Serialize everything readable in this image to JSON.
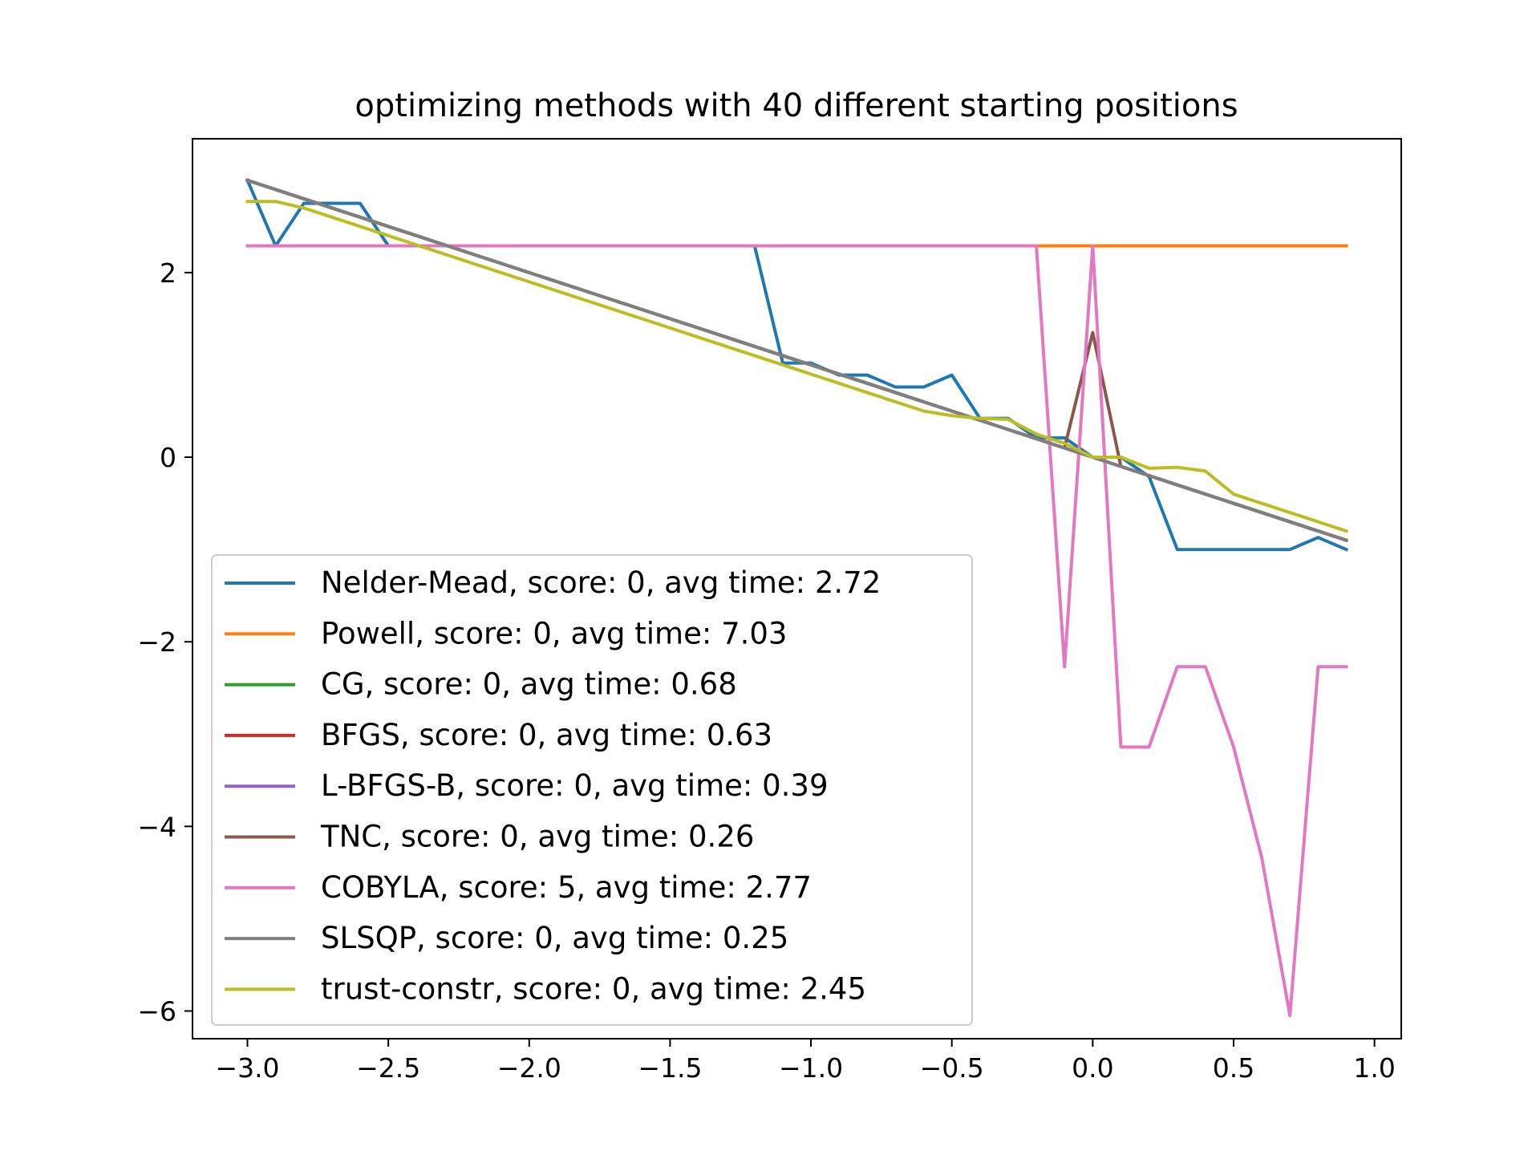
{
  "chart_data": {
    "type": "line",
    "title": "optimizing methods with 40 different starting positions",
    "xlabel": "",
    "ylabel": "",
    "xlim": [
      -3.195,
      1.095
    ],
    "ylim": [
      -6.3,
      3.45
    ],
    "xticks": [
      -3.0,
      -2.5,
      -2.0,
      -1.5,
      -1.0,
      -0.5,
      0.0,
      0.5,
      1.0
    ],
    "xtick_labels": [
      "−3.0",
      "−2.5",
      "−2.0",
      "−1.5",
      "−1.0",
      "−0.5",
      "0.0",
      "0.5",
      "1.0"
    ],
    "yticks": [
      -6,
      -4,
      -2,
      0,
      2
    ],
    "ytick_labels": [
      "−6",
      "−4",
      "−2",
      "0",
      "2"
    ],
    "grid": false,
    "legend_position": "lower-left",
    "x": [
      -3.0,
      -2.9,
      -2.8,
      -2.7,
      -2.6,
      -2.5,
      -2.4,
      -2.3,
      -2.2,
      -2.1,
      -2.0,
      -1.9,
      -1.8,
      -1.7,
      -1.6,
      -1.5,
      -1.4,
      -1.3,
      -1.2,
      -1.1,
      -1.0,
      -0.9,
      -0.8,
      -0.7,
      -0.6,
      -0.5,
      -0.4,
      -0.3,
      -0.2,
      -0.1,
      0.0,
      0.1,
      0.2,
      0.3,
      0.4,
      0.5,
      0.6,
      0.7,
      0.8,
      0.9
    ],
    "series": [
      {
        "name": "Nelder-Mead, score: 0, avg time: 2.72",
        "color": "#1f77b4",
        "values": [
          3.0,
          2.29,
          2.75,
          2.75,
          2.75,
          2.29,
          2.29,
          2.29,
          2.29,
          2.29,
          2.29,
          2.29,
          2.29,
          2.29,
          2.29,
          2.29,
          2.29,
          2.29,
          2.29,
          1.02,
          1.02,
          0.89,
          0.89,
          0.76,
          0.76,
          0.89,
          0.42,
          0.42,
          0.21,
          0.21,
          0.0,
          0.0,
          -0.21,
          -1.0,
          -1.0,
          -1.0,
          -1.0,
          -1.0,
          -0.87,
          -1.0
        ]
      },
      {
        "name": "Powell, score: 0, avg time: 7.03",
        "color": "#ff7f0e",
        "values": [
          2.29,
          2.29,
          2.29,
          2.29,
          2.29,
          2.29,
          2.29,
          2.29,
          2.29,
          2.29,
          2.29,
          2.29,
          2.29,
          2.29,
          2.29,
          2.29,
          2.29,
          2.29,
          2.29,
          2.29,
          2.29,
          2.29,
          2.29,
          2.29,
          2.29,
          2.29,
          2.29,
          2.29,
          2.29,
          2.29,
          2.29,
          2.29,
          2.29,
          2.29,
          2.29,
          2.29,
          2.29,
          2.29,
          2.29,
          2.29
        ]
      },
      {
        "name": "CG, score: 0, avg time: 0.68",
        "color": "#2ca02c",
        "values": [
          3.0,
          2.9,
          2.8,
          2.7,
          2.6,
          2.5,
          2.4,
          2.3,
          2.2,
          2.1,
          2.0,
          1.9,
          1.8,
          1.7,
          1.6,
          1.5,
          1.4,
          1.3,
          1.2,
          1.1,
          1.0,
          0.9,
          0.8,
          0.7,
          0.6,
          0.5,
          0.4,
          0.3,
          0.2,
          0.1,
          0.0,
          -0.1,
          -0.2,
          -0.3,
          -0.4,
          -0.5,
          -0.6,
          -0.7,
          -0.8,
          -0.9
        ]
      },
      {
        "name": "BFGS, score: 0, avg time: 0.63",
        "color": "#d62728",
        "values": [
          3.0,
          2.9,
          2.8,
          2.7,
          2.6,
          2.5,
          2.4,
          2.3,
          2.2,
          2.1,
          2.0,
          1.9,
          1.8,
          1.7,
          1.6,
          1.5,
          1.4,
          1.3,
          1.2,
          1.1,
          1.0,
          0.9,
          0.8,
          0.7,
          0.6,
          0.5,
          0.4,
          0.3,
          0.2,
          0.1,
          0.0,
          -0.1,
          -0.2,
          -0.3,
          -0.4,
          -0.5,
          -0.6,
          -0.7,
          -0.8,
          -0.9
        ]
      },
      {
        "name": "L-BFGS-B, score: 0, avg time: 0.39",
        "color": "#9467bd",
        "values": [
          3.0,
          2.9,
          2.8,
          2.7,
          2.6,
          2.5,
          2.4,
          2.3,
          2.2,
          2.1,
          2.0,
          1.9,
          1.8,
          1.7,
          1.6,
          1.5,
          1.4,
          1.3,
          1.2,
          1.1,
          1.0,
          0.9,
          0.8,
          0.7,
          0.6,
          0.5,
          0.4,
          0.3,
          0.2,
          0.1,
          0.0,
          -0.1,
          -0.2,
          -0.3,
          -0.4,
          -0.5,
          -0.6,
          -0.7,
          -0.8,
          -0.9
        ]
      },
      {
        "name": "TNC, score: 0, avg time: 0.26",
        "color": "#8c564b",
        "values": [
          3.0,
          2.9,
          2.8,
          2.7,
          2.6,
          2.5,
          2.4,
          2.3,
          2.2,
          2.1,
          2.0,
          1.9,
          1.8,
          1.7,
          1.6,
          1.5,
          1.4,
          1.3,
          1.2,
          1.1,
          1.0,
          0.9,
          0.8,
          0.7,
          0.6,
          0.5,
          0.4,
          0.3,
          0.2,
          0.1,
          1.35,
          -0.1,
          -0.2,
          -0.3,
          -0.4,
          -0.5,
          -0.6,
          -0.7,
          -0.8,
          -0.9
        ]
      },
      {
        "name": "COBYLA, score: 5, avg time: 2.77",
        "color": "#e377c2",
        "values": [
          2.29,
          2.29,
          2.29,
          2.29,
          2.29,
          2.29,
          2.29,
          2.29,
          2.29,
          2.29,
          2.29,
          2.29,
          2.29,
          2.29,
          2.29,
          2.29,
          2.29,
          2.29,
          2.29,
          2.29,
          2.29,
          2.29,
          2.29,
          2.29,
          2.29,
          2.29,
          2.29,
          2.29,
          2.29,
          -2.27,
          2.29,
          -3.14,
          -3.14,
          -2.27,
          -2.27,
          -3.14,
          -4.34,
          -6.05,
          -2.27,
          -2.27
        ]
      },
      {
        "name": "SLSQP, score: 0, avg time: 0.25",
        "color": "#7f7f7f",
        "values": [
          3.0,
          2.9,
          2.8,
          2.7,
          2.6,
          2.5,
          2.4,
          2.3,
          2.2,
          2.1,
          2.0,
          1.9,
          1.8,
          1.7,
          1.6,
          1.5,
          1.4,
          1.3,
          1.2,
          1.1,
          1.0,
          0.9,
          0.8,
          0.7,
          0.6,
          0.5,
          0.4,
          0.3,
          0.2,
          0.1,
          0.0,
          -0.1,
          -0.2,
          -0.3,
          -0.4,
          -0.5,
          -0.6,
          -0.7,
          -0.8,
          -0.9
        ]
      },
      {
        "name": "trust-constr, score: 0, avg time: 2.45",
        "color": "#bcbd22",
        "values": [
          2.77,
          2.77,
          2.7,
          2.6,
          2.5,
          2.4,
          2.3,
          2.2,
          2.1,
          2.0,
          1.9,
          1.8,
          1.7,
          1.6,
          1.5,
          1.4,
          1.3,
          1.2,
          1.1,
          1.0,
          0.9,
          0.8,
          0.7,
          0.6,
          0.5,
          0.45,
          0.42,
          0.41,
          0.25,
          0.15,
          0.0,
          0.0,
          -0.12,
          -0.11,
          -0.15,
          -0.4,
          -0.5,
          -0.6,
          -0.7,
          -0.8
        ]
      }
    ]
  }
}
